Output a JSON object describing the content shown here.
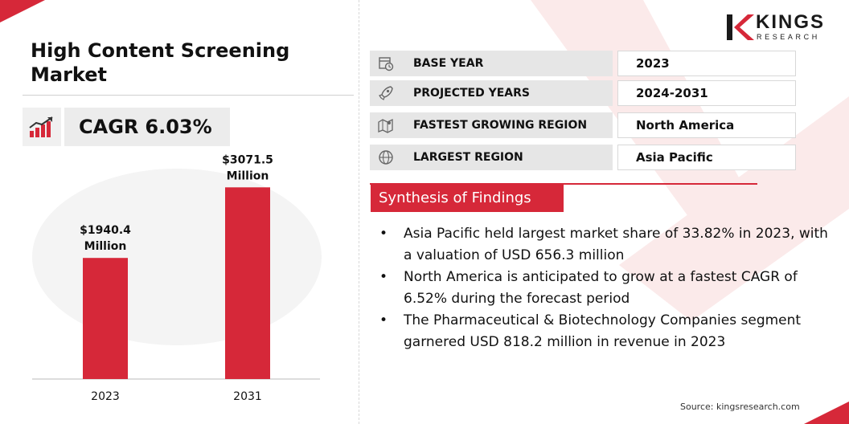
{
  "title": "High Content Screening Market",
  "cagr": {
    "label": "CAGR",
    "value": "6.03%",
    "icon": "growth-chart-icon"
  },
  "logo": {
    "primary": "KINGS",
    "secondary": "RESEARCH",
    "accent": "#d62839"
  },
  "info": [
    {
      "icon": "calendar-clock-icon",
      "label": "BASE YEAR",
      "value": "2023"
    },
    {
      "icon": "rocket-icon",
      "label": "PROJECTED YEARS",
      "value": "2024-2031"
    },
    {
      "icon": "map-region-icon",
      "label": "FASTEST GROWING REGION",
      "value": "North America"
    },
    {
      "icon": "globe-icon",
      "label": "LARGEST REGION",
      "value": "Asia Pacific"
    }
  ],
  "synthesis": {
    "heading": "Synthesis of Findings",
    "items": [
      "Asia Pacific held largest market share of 33.82% in 2023, with a valuation of USD 656.3 million",
      "North America is anticipated to grow at a fastest CAGR of 6.52% during the forecast period",
      "The Pharmaceutical & Biotechnology Companies segment garnered USD 818.2 million in revenue in 2023"
    ]
  },
  "source": "Source: kingsresearch.com",
  "colors": {
    "accent": "#d62839",
    "bar": "#d62839",
    "panel": "#e6e6e6"
  },
  "chart_data": {
    "type": "bar",
    "categories": [
      "2023",
      "2031"
    ],
    "values": [
      1940.4,
      3071.5
    ],
    "data_labels": [
      [
        "$1940.4",
        "Million"
      ],
      [
        "$3071.5",
        "Million"
      ]
    ],
    "title": "",
    "xlabel": "",
    "ylabel": "",
    "ylim": [
      0,
      3500
    ],
    "grid": false,
    "legend": "none"
  }
}
